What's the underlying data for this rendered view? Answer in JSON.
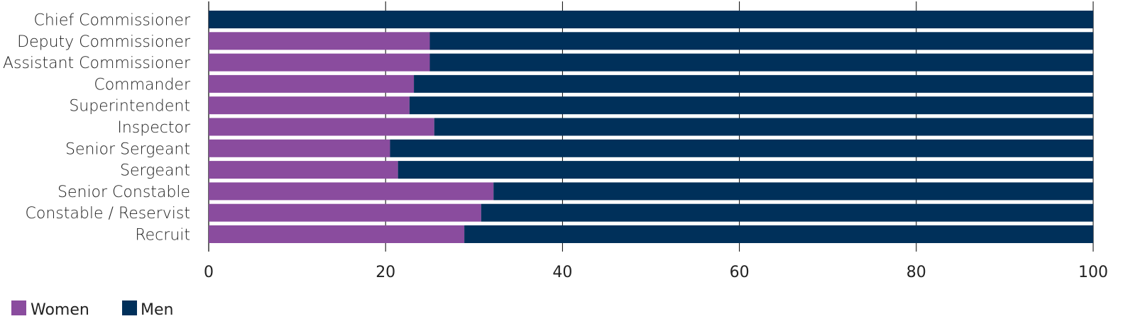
{
  "chart_data": {
    "type": "bar",
    "orientation": "horizontal",
    "stacked": true,
    "categories": [
      "Chief Commissioner",
      "Deputy Commissioner",
      "Assistant Commissioner",
      "Commander",
      "Superintendent",
      "Inspector",
      "Senior Sergeant",
      "Sergeant",
      "Senior Constable",
      "Constable / Reservist",
      "Recruit"
    ],
    "series": [
      {
        "name": "Women",
        "color": "#8a4c9e",
        "values": [
          0,
          25,
          25,
          23.2,
          22.7,
          25.5,
          20.5,
          21.4,
          32.2,
          30.8,
          28.9
        ]
      },
      {
        "name": "Men",
        "color": "#00305a",
        "values": [
          100,
          75,
          75,
          76.8,
          77.3,
          74.5,
          79.5,
          78.6,
          67.8,
          69.2,
          71.1
        ]
      }
    ],
    "xlim": [
      0,
      100
    ],
    "xticks": [
      "0",
      "20",
      "40",
      "60",
      "80",
      "100"
    ],
    "grid": true,
    "legend_position": "bottom-left"
  }
}
